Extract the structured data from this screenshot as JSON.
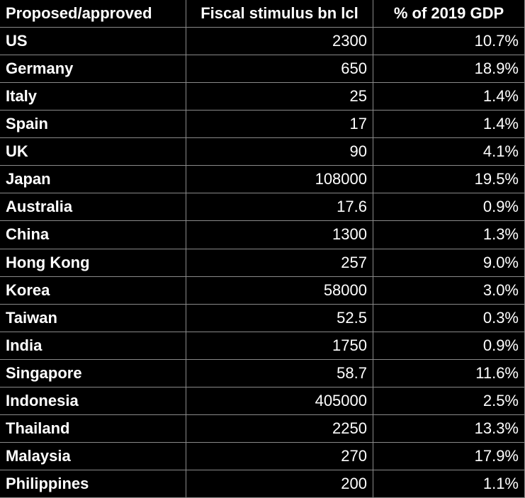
{
  "table": {
    "header": [
      "Proposed/approved",
      "Fiscal stimulus bn lcl",
      "% of 2019 GDP"
    ],
    "rows": [
      [
        "US",
        2300,
        "10.7%"
      ],
      [
        "Germany",
        650,
        "18.9%"
      ],
      [
        "Italy",
        25,
        "1.4%"
      ],
      [
        "Spain",
        17,
        "1.4%"
      ],
      [
        "UK",
        90,
        "4.1%"
      ],
      [
        "Japan",
        108000,
        "19.5%"
      ],
      [
        "Australia",
        17.6,
        "0.9%"
      ],
      [
        "China",
        1300,
        "1.3%"
      ],
      [
        "Hong Kong",
        257,
        "9.0%"
      ],
      [
        "Korea",
        58000,
        "3.0%"
      ],
      [
        "Taiwan",
        52.5,
        "0.3%"
      ],
      [
        "India",
        1750,
        "0.9%"
      ],
      [
        "Singapore",
        58.7,
        "11.6%"
      ],
      [
        "Indonesia",
        405000,
        "2.5%"
      ],
      [
        "Thailand",
        2250,
        "13.3%"
      ],
      [
        "Malaysia",
        270,
        "17.9%"
      ],
      [
        "Philippines",
        200,
        "1.1%"
      ]
    ]
  }
}
